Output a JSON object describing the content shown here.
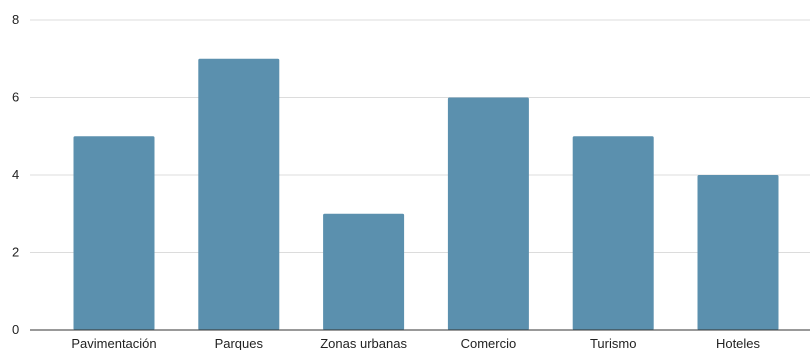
{
  "chart_data": {
    "type": "bar",
    "categories": [
      "Pavimentación",
      "Parques",
      "Zonas urbanas",
      "Comercio",
      "Turismo",
      "Hoteles"
    ],
    "values": [
      5,
      7,
      3,
      6,
      5,
      4
    ],
    "title": "",
    "xlabel": "",
    "ylabel": "",
    "ylim": [
      0,
      8
    ],
    "yticks": [
      "0",
      "2",
      "4",
      "6",
      "8"
    ],
    "grid": true,
    "legend": "none",
    "bar_color": "#5b90ae"
  }
}
